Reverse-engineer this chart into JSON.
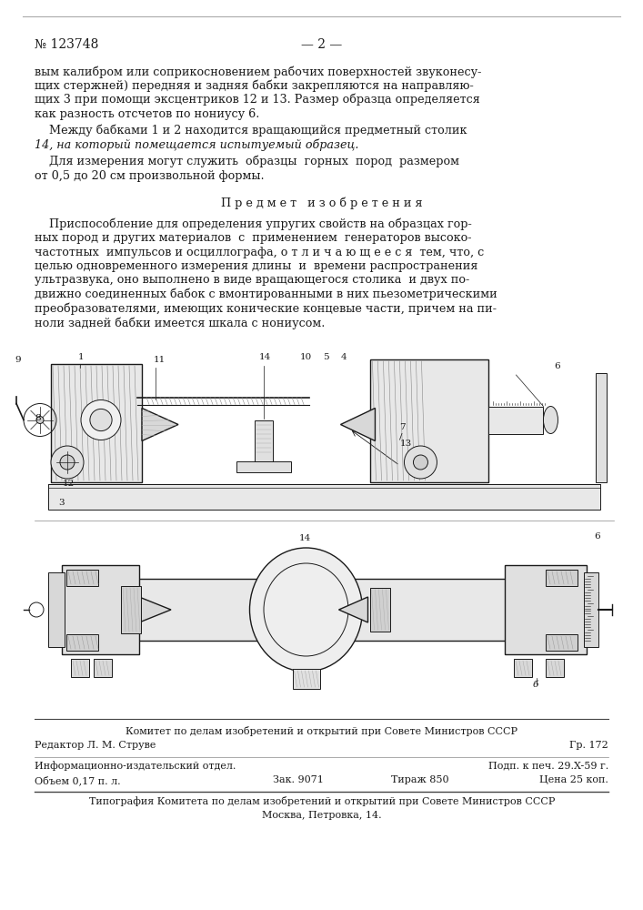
{
  "page_number": "№ 123748",
  "page_label": "— 2 —",
  "bg_color": "#ffffff",
  "text_color": "#1a1a1a",
  "body_text_1": "вым калибром или соприкосновением рабочих поверхностей звуконесу-\nщих стержней) передняя и задняя бабки закрепляются на направляю-\nщих 3 при помощи эксцентриков 12 и 13. Размер образца определяется\nкак разность отсчетов по нониусу 6.",
  "body_text_2_indent": "    Между бабками 1 и 2 находится вращающийся предметный столик",
  "body_text_2b": "14, на который помещается испытуемый образец.",
  "body_text_3_indent": "    Для измерения могут служить  образцы  горных  пород  размером",
  "body_text_3b": "от 0,5 до 20 см произвольной формы.",
  "section_title": "П р е д м е т   и з о б р е т е н и я",
  "claim_line1": "    Приспособление для определения упругих свойств на образцах гор-",
  "claim_line2": "ных пород и других материалов  с  применением  генераторов высоко-",
  "claim_line3": "частотных  импульсов и осциллографа, о т л и ч а ю щ е е с я  тем, что, с",
  "claim_line4": "целью одновременного измерения длины  и  времени распространения",
  "claim_line5": "ультразвука, оно выполнено в виде вращающегося столика  и двух по-",
  "claim_line6": "движно соединенных бабок с вмонтированными в них пьезометрическими",
  "claim_line7": "преобразователями, имеющих конические концевые части, причем на пи-",
  "claim_line8": "ноли задней бабки имеется шкала с нониусом.",
  "footer_line1": "Комитет по делам изобретений и открытий при Совете Министров СССР",
  "footer_line2": "Редактор Л. М. Струве",
  "footer_right2": "Гр. 172",
  "footer_line3": "Информационно-издательский отдел.",
  "footer_right3": "Подп. к печ. 29.X-59 г.",
  "footer_line4": "Объем 0,17 п. л.",
  "footer_mid4": "Зак. 9071",
  "footer_mid4b": "Тираж 850",
  "footer_right4": "Цена 25 коп.",
  "footer_line5": "Типография Комитета по делам изобретений и открытий при Совете Министров СССР",
  "footer_line6": "Москва, Петровка, 14."
}
